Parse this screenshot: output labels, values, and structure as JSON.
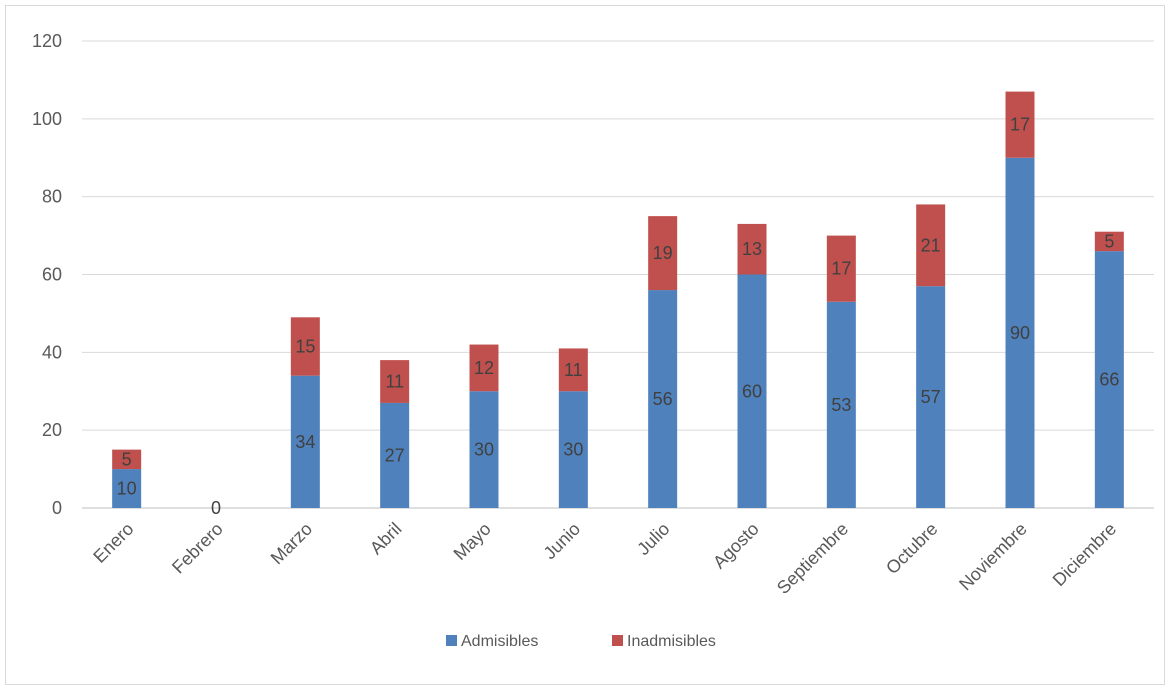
{
  "chart_data": {
    "type": "bar",
    "stacked": true,
    "categories": [
      "Enero",
      "Febrero",
      "Marzo",
      "Abril",
      "Mayo",
      "Junio",
      "Julio",
      "Agosto",
      "Septiembre",
      "Octubre",
      "Noviembre",
      "Diciembre"
    ],
    "series": [
      {
        "name": "Admisibles",
        "color": "#4f81bd",
        "values": [
          10,
          0,
          34,
          27,
          30,
          30,
          56,
          60,
          53,
          57,
          90,
          66
        ]
      },
      {
        "name": "Inadmisibles",
        "color": "#c0504d",
        "values": [
          5,
          0,
          15,
          11,
          12,
          11,
          19,
          13,
          17,
          21,
          17,
          5
        ]
      }
    ],
    "data_labels": {
      "Admisibles": [
        "10",
        "0",
        "34",
        "27",
        "30",
        "30",
        "56",
        "60",
        "53",
        "57",
        "90",
        "66"
      ],
      "Inadmisibles": [
        "5",
        "",
        "15",
        "11",
        "12",
        "11",
        "19",
        "13",
        "17",
        "21",
        "17",
        "5"
      ]
    },
    "ylim": [
      0,
      120
    ],
    "yticks": [
      "0",
      "20",
      "40",
      "60",
      "80",
      "100",
      "120"
    ],
    "grid": true,
    "legend_position": "bottom",
    "title": "",
    "xlabel": "",
    "ylabel": ""
  }
}
